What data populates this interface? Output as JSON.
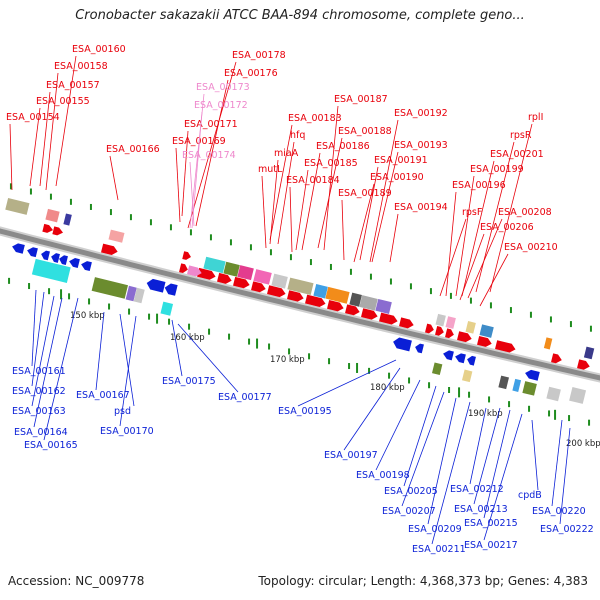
{
  "title": "Cronobacter sakazakii ATCC BAA-894 chromosome, complete geno...",
  "footer": {
    "accession": "Accession: NC_009778",
    "summary": "Topology: circular; Length: 4,368,373 bp; Genes: 4,383"
  },
  "scale_ticks": [
    "150 kbp",
    "160 kbp",
    "170 kbp",
    "180 kbp",
    "190 kbp",
    "200 kbp"
  ],
  "labels_top": [
    "ESA_00160",
    "ESA_00158",
    "ESA_00157",
    "ESA_00155",
    "ESA_00154",
    "ESA_00166",
    "ESA_00178",
    "ESA_00176",
    "ESA_00171",
    "ESA_00169",
    "ESA_00187",
    "ESA_00183",
    "hfq",
    "miaA",
    "mutL",
    "ESA_00192",
    "ESA_00188",
    "ESA_00186",
    "ESA_00185",
    "ESA_00184",
    "ESA_00193",
    "ESA_00191",
    "ESA_00190",
    "ESA_00189",
    "ESA_00194",
    "rplI",
    "rpsR",
    "ESA_00201",
    "ESA_00199",
    "ESA_00196",
    "rpsF",
    "ESA_00208",
    "ESA_00206",
    "ESA_00210"
  ],
  "labels_top_faded": [
    "ESA_00173",
    "ESA_00172",
    "ESA_00174"
  ],
  "labels_bottom": [
    "ESA_00161",
    "ESA_00162",
    "ESA_00163",
    "ESA_00164",
    "ESA_00165",
    "ESA_00167",
    "psd",
    "ESA_00170",
    "ESA_00175",
    "ESA_00177",
    "ESA_00195",
    "ESA_00197",
    "ESA_00198",
    "ESA_00205",
    "ESA_00207",
    "ESA_00209",
    "ESA_00211",
    "ESA_00212",
    "ESA_00213",
    "ESA_00215",
    "ESA_00217",
    "cpdB",
    "ESA_00220",
    "ESA_00222"
  ],
  "colors": {
    "forward": "#e8000b",
    "reverse": "#0a1fd6",
    "faded": "#ee88cc",
    "backbone": "#8a8a8a",
    "tick": "#1e8c1e"
  }
}
